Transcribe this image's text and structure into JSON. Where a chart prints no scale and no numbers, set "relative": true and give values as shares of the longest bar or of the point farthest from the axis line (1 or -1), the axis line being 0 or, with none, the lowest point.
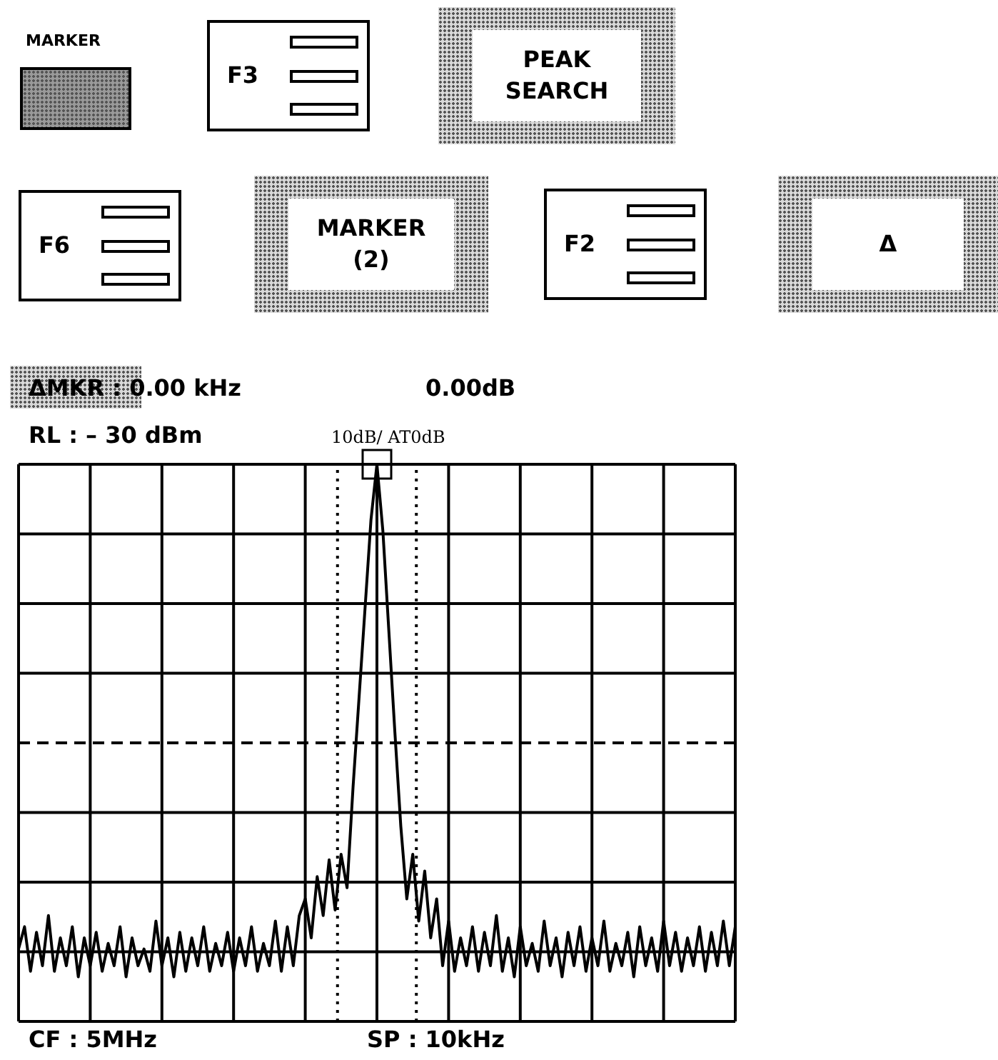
{
  "chart_data": {
    "type": "line",
    "relative": true,
    "grid": true,
    "annotations": [
      "MARKER",
      "F3",
      "PEAK SEARCH",
      "F6",
      "MARKER (2)",
      "F2",
      "Δ",
      "ΔMKR : 0.00 kHz",
      "0.00dB",
      "RL : – 30 dBm",
      "10dB/ AT0dB",
      "CF : 5MHz",
      "SP : 10kHz"
    ],
    "categories": [
      null,
      null,
      null,
      null,
      null,
      null,
      null,
      null,
      null,
      null,
      null,
      null,
      null,
      null,
      null,
      null,
      null,
      null,
      null,
      null,
      null,
      null,
      null,
      null,
      null,
      null,
      null,
      null,
      null,
      null,
      null,
      null,
      null,
      null,
      null,
      null,
      null,
      null,
      null,
      null,
      null,
      null,
      null,
      null,
      null,
      null,
      null,
      null,
      null,
      null,
      null,
      null,
      null,
      null,
      null,
      null,
      null,
      null,
      null,
      null,
      null,
      null,
      null,
      null,
      null,
      null,
      null,
      null,
      null,
      null,
      null,
      null,
      null,
      null,
      null,
      null,
      null,
      null,
      null,
      null,
      null,
      null,
      null,
      null,
      null,
      null,
      null,
      null,
      null,
      null,
      null,
      null,
      null,
      null,
      null,
      null,
      null,
      null,
      null,
      null,
      null,
      null,
      null,
      null,
      null,
      null,
      null,
      null,
      null,
      null,
      null,
      null,
      null,
      null,
      null,
      null,
      null,
      null,
      null,
      null,
      null
    ],
    "series": [
      {
        "color": "#000000",
        "values": [
          0.13,
          0.17,
          0.09,
          0.16,
          0.1,
          0.19,
          0.09,
          0.15,
          0.1,
          0.17,
          0.08,
          0.15,
          0.1,
          0.16,
          0.09,
          0.14,
          0.1,
          0.17,
          0.08,
          0.15,
          0.1,
          0.13,
          0.09,
          0.18,
          0.1,
          0.15,
          0.08,
          0.16,
          0.09,
          0.15,
          0.1,
          0.17,
          0.09,
          0.14,
          0.1,
          0.16,
          0.09,
          0.15,
          0.1,
          0.17,
          0.09,
          0.14,
          0.1,
          0.18,
          0.09,
          0.17,
          0.1,
          0.19,
          0.22,
          0.15,
          0.26,
          0.19,
          0.29,
          0.2,
          0.3,
          0.24,
          0.42,
          0.58,
          0.74,
          0.9,
          1,
          0.88,
          0.7,
          0.52,
          0.35,
          0.22,
          0.3,
          0.18,
          0.27,
          0.15,
          0.22,
          0.1,
          0.18,
          0.09,
          0.15,
          0.1,
          0.17,
          0.09,
          0.16,
          0.1,
          0.19,
          0.09,
          0.15,
          0.08,
          0.17,
          0.1,
          0.14,
          0.09,
          0.18,
          0.1,
          0.15,
          0.08,
          0.16,
          0.1,
          0.17,
          0.09,
          0.15,
          0.1,
          0.18,
          0.09,
          0.14,
          0.1,
          0.16,
          0.08,
          0.17,
          0.1,
          0.15,
          0.09,
          0.18,
          0.1,
          0.16,
          0.09,
          0.15,
          0.1,
          0.17,
          0.09,
          0.16,
          0.1,
          0.18,
          0.1,
          0.17
        ]
      }
    ],
    "ref_lines": [
      {
        "axis": "y",
        "value": 0.5,
        "line_style": "dashed"
      }
    ]
  }
}
